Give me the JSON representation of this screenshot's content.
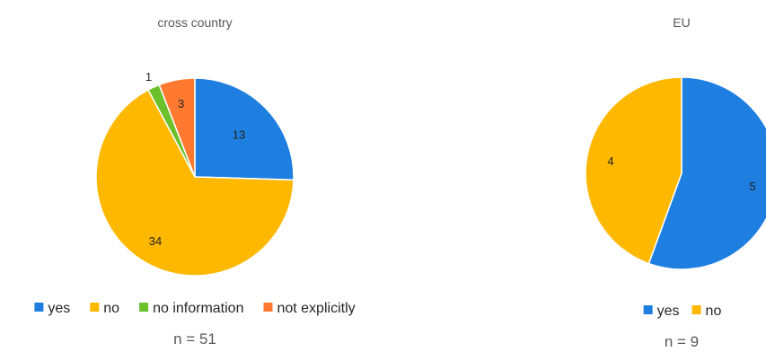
{
  "chart_data": [
    {
      "type": "pie",
      "title": "cross country",
      "categories": [
        "yes",
        "no",
        "no information",
        "not explicitly"
      ],
      "values": [
        13,
        34,
        1,
        3
      ],
      "colors": [
        "#1F7FE0",
        "#FFB800",
        "#6CC02A",
        "#FF7A30"
      ],
      "legend_position": "bottom",
      "note": "n = 51"
    },
    {
      "type": "pie",
      "title": "EU",
      "categories": [
        "yes",
        "no"
      ],
      "values": [
        5,
        4
      ],
      "colors": [
        "#1F7FE0",
        "#FFB800"
      ],
      "legend_position": "bottom",
      "note": "n = 9"
    }
  ]
}
